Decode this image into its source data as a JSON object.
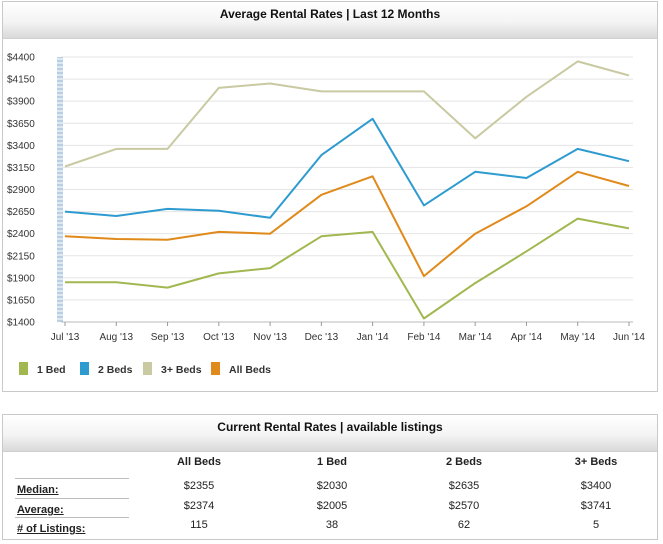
{
  "chart_panel": {
    "title": "Average Rental Rates  |  Last 12 Months"
  },
  "chart_data": {
    "type": "line",
    "categories": [
      "Jul '13",
      "Aug '13",
      "Sep '13",
      "Oct '13",
      "Nov '13",
      "Dec '13",
      "Jan '14",
      "Feb '14",
      "Mar '14",
      "Apr '14",
      "May '14",
      "Jun '14"
    ],
    "y_ticks": [
      "$4400",
      "$4150",
      "$3900",
      "$3650",
      "$3400",
      "$3150",
      "$2900",
      "$2650",
      "$2400",
      "$2150",
      "$1900",
      "$1650",
      "$1400"
    ],
    "ylim": [
      1400,
      4400
    ],
    "grid": true,
    "legend_position": "bottom-left",
    "series": [
      {
        "name": "1 Bed",
        "color": "#a0b84f",
        "values": [
          1850,
          1850,
          1790,
          1950,
          2010,
          2370,
          2420,
          1440,
          1840,
          2200,
          2570,
          2460
        ]
      },
      {
        "name": "2 Beds",
        "color": "#2e9bd0",
        "values": [
          2650,
          2600,
          2680,
          2660,
          2580,
          3290,
          3700,
          2720,
          3100,
          3030,
          3360,
          3220
        ]
      },
      {
        "name": "3+ Beds",
        "color": "#c9c9a2",
        "values": [
          3160,
          3360,
          3360,
          4050,
          4100,
          4010,
          4010,
          4010,
          3480,
          3950,
          4350,
          4190
        ]
      },
      {
        "name": "All Beds",
        "color": "#e08a1b",
        "values": [
          2370,
          2340,
          2330,
          2420,
          2400,
          2840,
          3050,
          1920,
          2400,
          2710,
          3100,
          2940
        ]
      }
    ]
  },
  "table_panel": {
    "title": "Current Rental Rates  |  available listings",
    "columns": [
      "All Beds",
      "1 Bed",
      "2 Beds",
      "3+ Beds"
    ],
    "rows": [
      {
        "label": "Median:",
        "values": [
          "$2355",
          "$2030",
          "$2635",
          "$3400"
        ]
      },
      {
        "label": "Average:",
        "values": [
          "$2374",
          "$2005",
          "$2570",
          "$3741"
        ]
      },
      {
        "label": "# of Listings:",
        "values": [
          "115",
          "38",
          "62",
          "5"
        ]
      }
    ]
  }
}
